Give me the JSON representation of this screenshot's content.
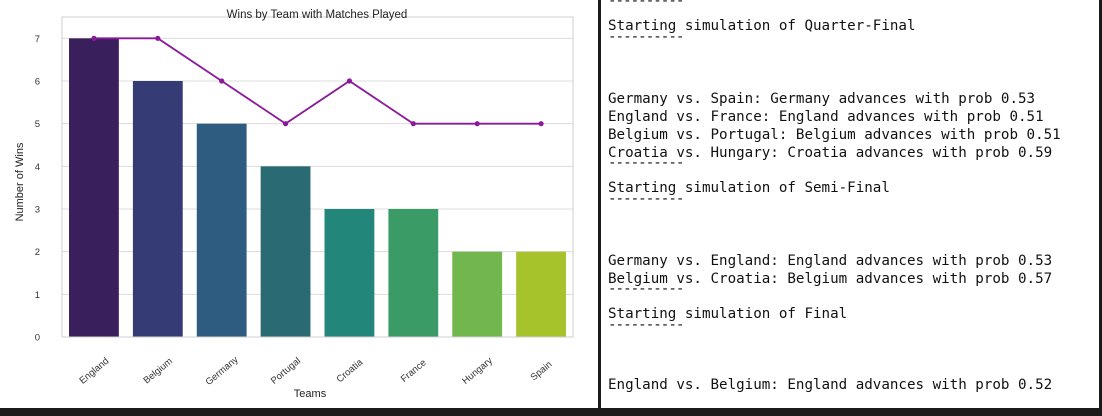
{
  "chart_data": {
    "type": "bar",
    "title": "Wins by Team with Matches Played",
    "xlabel": "Teams",
    "ylabel": "Number of Wins",
    "categories": [
      "England",
      "Belgium",
      "Germany",
      "Portugal",
      "Croatia",
      "France",
      "Hungary",
      "Spain"
    ],
    "series": [
      {
        "type": "bar",
        "values": [
          7,
          6,
          5,
          4,
          3,
          3,
          2,
          2
        ]
      },
      {
        "type": "line",
        "values": [
          7,
          7,
          6,
          5,
          6,
          5,
          5,
          5
        ]
      }
    ],
    "bar_colors": [
      "#3a1f5d",
      "#353c75",
      "#2d5c80",
      "#2a6a72",
      "#23867b",
      "#3a9b66",
      "#72b74d",
      "#a6c32b"
    ],
    "line_color": "#8b1a9a",
    "ylim": [
      0,
      7.5
    ],
    "yticks": [
      0,
      1,
      2,
      3,
      4,
      5,
      6,
      7
    ],
    "grid": true
  },
  "log": {
    "separator": "----------",
    "lines": [
      {
        "kind": "sep",
        "text": "----------"
      },
      {
        "kind": "text",
        "text": "Starting simulation of Quarter-Final"
      },
      {
        "kind": "sep",
        "text": "----------"
      },
      {
        "kind": "text",
        "text": "Germany vs. Spain: Germany advances with prob 0.53"
      },
      {
        "kind": "text",
        "text": "England vs. France: England advances with prob 0.51"
      },
      {
        "kind": "text",
        "text": "Belgium vs. Portugal: Belgium advances with prob 0.51"
      },
      {
        "kind": "text",
        "text": "Croatia vs. Hungary: Croatia advances with prob 0.59"
      },
      {
        "kind": "sep",
        "text": "----------"
      },
      {
        "kind": "text",
        "text": "Starting simulation of Semi-Final"
      },
      {
        "kind": "sep",
        "text": "----------"
      },
      {
        "kind": "text",
        "text": "Germany vs. England: England advances with prob 0.53"
      },
      {
        "kind": "text",
        "text": "Belgium vs. Croatia: Belgium advances with prob 0.57"
      },
      {
        "kind": "sep",
        "text": "----------"
      },
      {
        "kind": "text",
        "text": "Starting simulation of Final"
      },
      {
        "kind": "sep",
        "text": "----------"
      },
      {
        "kind": "text",
        "text": "England vs. Belgium: England advances with prob 0.52"
      }
    ]
  }
}
